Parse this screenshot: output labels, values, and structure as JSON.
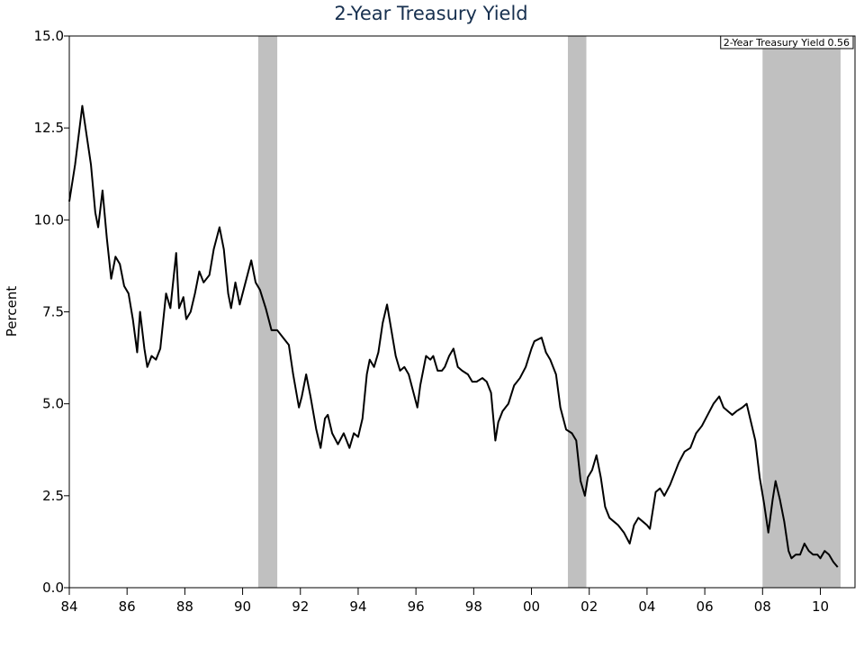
{
  "chart_data": {
    "type": "line",
    "title": "2-Year Treasury Yield",
    "y_label": "Percent",
    "legend": "top-right",
    "legend_value": 0.56,
    "recession_color": "#c0c0c0",
    "recessions": [
      [
        1990.54,
        1991.2
      ],
      [
        2001.26,
        2001.9
      ],
      [
        2008.0,
        2010.7
      ]
    ],
    "xlim": [
      1984,
      2011.2
    ],
    "xticks": [
      {
        "value": 1984,
        "label": "84"
      },
      {
        "value": 1986,
        "label": "86"
      },
      {
        "value": 1988,
        "label": "88"
      },
      {
        "value": 1990,
        "label": "90"
      },
      {
        "value": 1992,
        "label": "92"
      },
      {
        "value": 1994,
        "label": "94"
      },
      {
        "value": 1996,
        "label": "96"
      },
      {
        "value": 1998,
        "label": "98"
      },
      {
        "value": 2000,
        "label": "00"
      },
      {
        "value": 2002,
        "label": "02"
      },
      {
        "value": 2004,
        "label": "04"
      },
      {
        "value": 2006,
        "label": "06"
      },
      {
        "value": 2008,
        "label": "08"
      },
      {
        "value": 2010,
        "label": "10"
      }
    ],
    "ylim": [
      0,
      15
    ],
    "yticks": [
      {
        "value": 0,
        "label": "0.0"
      },
      2.5,
      {
        "value": 5,
        "label": "5.0"
      },
      7.5,
      {
        "value": 10,
        "label": "10.0"
      },
      12.5,
      {
        "value": 15,
        "label": "15.0"
      }
    ],
    "x": [
      1984.0,
      1984.2,
      1984.45,
      1984.6,
      1984.75,
      1984.9,
      1985.0,
      1985.15,
      1985.3,
      1985.45,
      1985.6,
      1985.75,
      1985.9,
      1986.05,
      1986.2,
      1986.35,
      1986.45,
      1986.6,
      1986.7,
      1986.85,
      1987.0,
      1987.15,
      1987.35,
      1987.5,
      1987.7,
      1987.8,
      1987.95,
      1988.05,
      1988.2,
      1988.35,
      1988.5,
      1988.65,
      1988.85,
      1989.0,
      1989.2,
      1989.35,
      1989.5,
      1989.6,
      1989.75,
      1989.9,
      1990.1,
      1990.3,
      1990.45,
      1990.6,
      1990.8,
      1991.0,
      1991.2,
      1991.4,
      1991.6,
      1991.75,
      1991.95,
      1992.05,
      1992.2,
      1992.35,
      1992.55,
      1992.7,
      1992.85,
      1992.95,
      1993.1,
      1993.3,
      1993.5,
      1993.7,
      1993.85,
      1994.0,
      1994.15,
      1994.3,
      1994.4,
      1994.55,
      1994.7,
      1994.85,
      1995.0,
      1995.15,
      1995.3,
      1995.45,
      1995.6,
      1995.75,
      1995.95,
      1996.05,
      1996.15,
      1996.35,
      1996.5,
      1996.6,
      1996.75,
      1996.9,
      1997.0,
      1997.15,
      1997.3,
      1997.45,
      1997.6,
      1997.8,
      1997.95,
      1998.1,
      1998.3,
      1998.45,
      1998.6,
      1998.75,
      1998.85,
      1999.0,
      1999.2,
      1999.4,
      1999.6,
      1999.8,
      2000.0,
      2000.1,
      2000.35,
      2000.5,
      2000.65,
      2000.85,
      2001.0,
      2001.2,
      2001.4,
      2001.55,
      2001.7,
      2001.85,
      2001.95,
      2002.1,
      2002.25,
      2002.4,
      2002.55,
      2002.7,
      2002.85,
      2003.0,
      2003.2,
      2003.4,
      2003.55,
      2003.7,
      2003.85,
      2004.0,
      2004.1,
      2004.3,
      2004.45,
      2004.6,
      2004.8,
      2004.95,
      2005.1,
      2005.3,
      2005.5,
      2005.7,
      2005.9,
      2006.1,
      2006.3,
      2006.5,
      2006.65,
      2006.8,
      2006.95,
      2007.1,
      2007.3,
      2007.45,
      2007.6,
      2007.75,
      2007.9,
      2008.05,
      2008.2,
      2008.35,
      2008.45,
      2008.6,
      2008.75,
      2008.9,
      2009.0,
      2009.15,
      2009.3,
      2009.45,
      2009.6,
      2009.75,
      2009.9,
      2010.0,
      2010.15,
      2010.3,
      2010.45,
      2010.6
    ],
    "series": [
      {
        "name": "2-Year Treasury Yield",
        "color": "#000000",
        "values": [
          10.5,
          11.5,
          13.1,
          12.3,
          11.5,
          10.2,
          9.8,
          10.8,
          9.5,
          8.4,
          9.0,
          8.8,
          8.2,
          8.0,
          7.3,
          6.4,
          7.5,
          6.5,
          6.0,
          6.3,
          6.2,
          6.5,
          8.0,
          7.6,
          9.1,
          7.6,
          7.9,
          7.3,
          7.5,
          8.0,
          8.6,
          8.3,
          8.5,
          9.2,
          9.8,
          9.2,
          8.0,
          7.6,
          8.3,
          7.7,
          8.3,
          8.9,
          8.3,
          8.1,
          7.6,
          7.0,
          7.0,
          6.8,
          6.6,
          5.8,
          4.9,
          5.2,
          5.8,
          5.2,
          4.3,
          3.8,
          4.6,
          4.7,
          4.2,
          3.9,
          4.2,
          3.8,
          4.2,
          4.1,
          4.6,
          5.8,
          6.2,
          6.0,
          6.4,
          7.2,
          7.7,
          7.0,
          6.3,
          5.9,
          6.0,
          5.8,
          5.2,
          4.9,
          5.5,
          6.3,
          6.2,
          6.3,
          5.9,
          5.9,
          6.0,
          6.3,
          6.5,
          6.0,
          5.9,
          5.8,
          5.6,
          5.6,
          5.7,
          5.6,
          5.3,
          4.0,
          4.5,
          4.8,
          5.0,
          5.5,
          5.7,
          6.0,
          6.5,
          6.7,
          6.8,
          6.4,
          6.2,
          5.8,
          4.9,
          4.3,
          4.2,
          4.0,
          2.9,
          2.5,
          3.0,
          3.2,
          3.6,
          3.0,
          2.2,
          1.9,
          1.8,
          1.7,
          1.5,
          1.2,
          1.7,
          1.9,
          1.8,
          1.7,
          1.6,
          2.6,
          2.7,
          2.5,
          2.8,
          3.1,
          3.4,
          3.7,
          3.8,
          4.2,
          4.4,
          4.7,
          5.0,
          5.2,
          4.9,
          4.8,
          4.7,
          4.8,
          4.9,
          5.0,
          4.5,
          4.0,
          3.0,
          2.3,
          1.5,
          2.4,
          2.9,
          2.4,
          1.8,
          1.0,
          0.8,
          0.9,
          0.9,
          1.2,
          1.0,
          0.9,
          0.9,
          0.8,
          1.0,
          0.9,
          0.7,
          0.56
        ]
      }
    ]
  }
}
